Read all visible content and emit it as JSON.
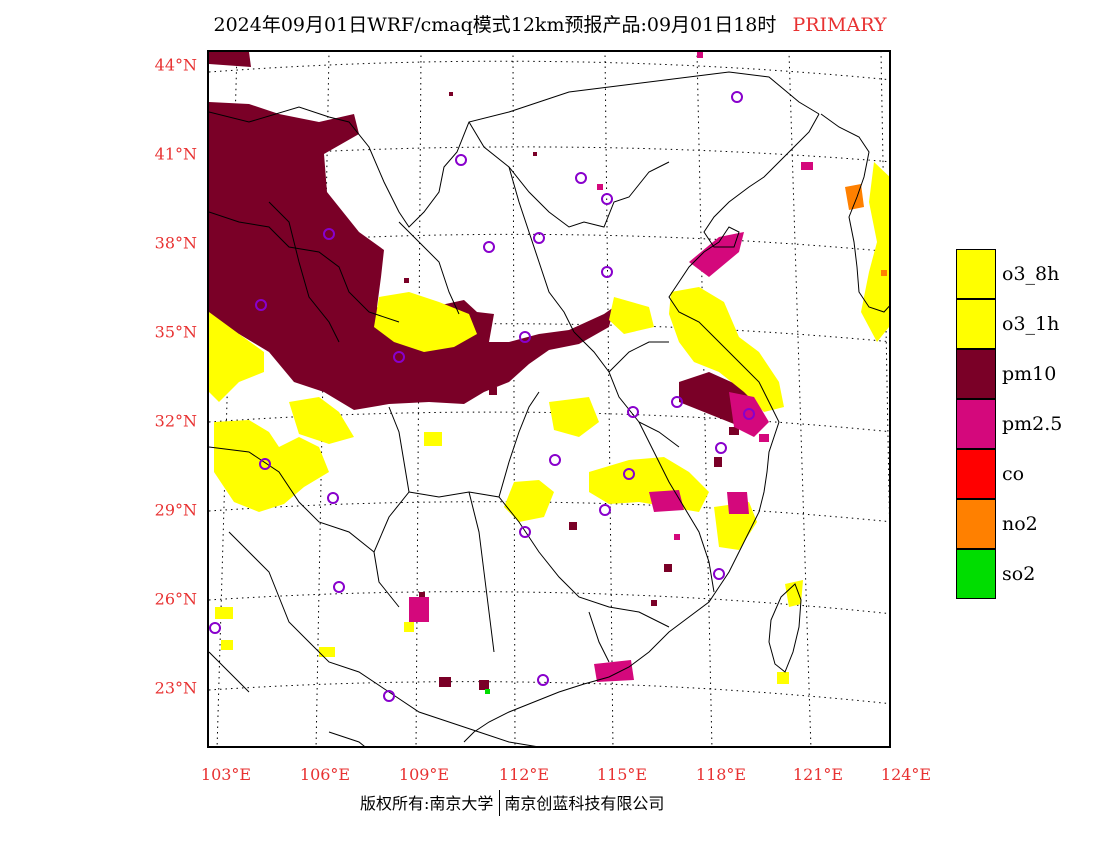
{
  "title": {
    "main": "2024年09月01日WRF/cmaq模式12km预报产品:09月01日18时",
    "tag": "PRIMARY"
  },
  "map": {
    "lat_labels": [
      "44°N",
      "41°N",
      "38°N",
      "35°N",
      "32°N",
      "29°N",
      "26°N",
      "23°N"
    ],
    "lon_labels": [
      "103°E",
      "106°E",
      "109°E",
      "112°E",
      "115°E",
      "118°E",
      "121°E",
      "124°E"
    ],
    "colors": {
      "pm10": "#7a0027",
      "pm25": "#d4087c",
      "o3": "#ffff00",
      "no2": "#ff8000",
      "co": "#ff0000",
      "so2": "#00dd00",
      "station": "#8800cc"
    }
  },
  "legend": [
    {
      "label": "o3_8h",
      "color": "#ffff00"
    },
    {
      "label": "o3_1h",
      "color": "#ffff00"
    },
    {
      "label": "pm10",
      "color": "#7a0027"
    },
    {
      "label": "pm2.5",
      "color": "#d4087c"
    },
    {
      "label": "co",
      "color": "#ff0000"
    },
    {
      "label": "no2",
      "color": "#ff8000"
    },
    {
      "label": "so2",
      "color": "#00dd00"
    }
  ],
  "footer": {
    "left": "版权所有:南京大学",
    "right": "南京创蓝科技有限公司"
  }
}
